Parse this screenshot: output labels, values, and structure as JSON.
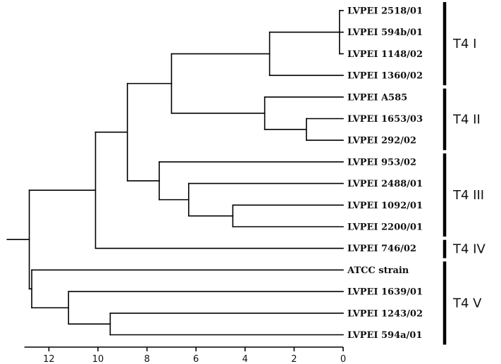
{
  "leaves": [
    {
      "id": "l1",
      "label": "LVPEI 2518/01"
    },
    {
      "id": "l2",
      "label": "LVPEI 594b/01"
    },
    {
      "id": "l3",
      "label": "LVPEI 1148/02"
    },
    {
      "id": "l4",
      "label": "LVPEI 1360/02"
    },
    {
      "id": "l5",
      "label": "LVPEI A585"
    },
    {
      "id": "l6",
      "label": "LVPEI 1653/03"
    },
    {
      "id": "l7",
      "label": "LVPEI 292/02"
    },
    {
      "id": "l8",
      "label": "LVPEI 953/02"
    },
    {
      "id": "l9",
      "label": "LVPEI 2488/01"
    },
    {
      "id": "l10",
      "label": "LVPEI 1092/01"
    },
    {
      "id": "l11",
      "label": "LVPEI 2200/01"
    },
    {
      "id": "l12",
      "label": "LVPEI 746/02"
    },
    {
      "id": "l13",
      "label": "ATCC strain"
    },
    {
      "id": "l14",
      "label": "LVPEI 1639/01"
    },
    {
      "id": "l15",
      "label": "LVPEI 1243/02"
    },
    {
      "id": "l16",
      "label": "LVPEI 594a/01"
    }
  ],
  "nodes": [
    {
      "id": "n1",
      "height": 0.15,
      "children": [
        "l1",
        "l2",
        "l3"
      ]
    },
    {
      "id": "n2",
      "height": 3.0,
      "children": [
        "n1",
        "l4"
      ]
    },
    {
      "id": "n3",
      "height": 1.5,
      "children": [
        "l6",
        "l7"
      ]
    },
    {
      "id": "n4",
      "height": 3.2,
      "children": [
        "l5",
        "n3"
      ]
    },
    {
      "id": "n5",
      "height": 7.0,
      "children": [
        "n2",
        "n4"
      ]
    },
    {
      "id": "n6",
      "height": 4.5,
      "children": [
        "l10",
        "l11"
      ]
    },
    {
      "id": "n7",
      "height": 6.3,
      "children": [
        "l9",
        "n6"
      ]
    },
    {
      "id": "n8",
      "height": 7.5,
      "children": [
        "l8",
        "n7"
      ]
    },
    {
      "id": "n9",
      "height": 8.8,
      "children": [
        "n5",
        "n8"
      ]
    },
    {
      "id": "n10",
      "height": 10.1,
      "children": [
        "n9",
        "l12"
      ]
    },
    {
      "id": "n11",
      "height": 9.5,
      "children": [
        "l15",
        "l16"
      ]
    },
    {
      "id": "n12",
      "height": 11.2,
      "children": [
        "l14",
        "n11"
      ]
    },
    {
      "id": "n13",
      "height": 12.7,
      "children": [
        "l13",
        "n12"
      ]
    },
    {
      "id": "n14",
      "height": 12.8,
      "children": [
        "n10",
        "n13"
      ]
    }
  ],
  "root": "n14",
  "root_stub": 13.7,
  "axis": {
    "direction": "decreasing-to-right",
    "min": 0,
    "max": 13,
    "ticks": [
      12,
      10,
      8,
      6,
      4,
      2,
      0
    ],
    "tick_labels": [
      "12",
      "10",
      "8",
      "6",
      "4",
      "2",
      "0"
    ]
  },
  "clusters": [
    {
      "label": "T4 I",
      "first_leaf": 0,
      "last_leaf": 3
    },
    {
      "label": "T4 II",
      "first_leaf": 4,
      "last_leaf": 6
    },
    {
      "label": "T4 III",
      "first_leaf": 7,
      "last_leaf": 10
    },
    {
      "label": "T4 IV",
      "first_leaf": 11,
      "last_leaf": 11
    },
    {
      "label": "T4 V",
      "first_leaf": 12,
      "last_leaf": 15
    }
  ]
}
